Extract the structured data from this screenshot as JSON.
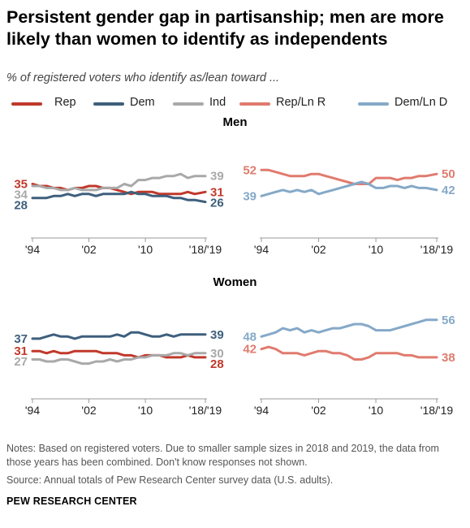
{
  "title": "Persistent gender gap in partisanship; men are more likely than women to identify as independents",
  "subtitle": "% of registered voters who identify as/lean toward ...",
  "legend": [
    {
      "label": "Rep",
      "color": "#c0392b"
    },
    {
      "label": "Dem",
      "color": "#3e5f7d"
    },
    {
      "label": "Ind",
      "color": "#a9a9a9"
    },
    {
      "label": "Rep/Ln R",
      "color": "#e07b6e"
    },
    {
      "label": "Dem/Ln D",
      "color": "#85a9c8"
    }
  ],
  "panels": {
    "men_label": "Men",
    "women_label": "Women"
  },
  "notes": "Notes: Based on registered voters. Due to smaller sample sizes in 2018 and 2019, the data from those years has been combined. Don't know responses not shown.",
  "source": "Source: Annual totals of Pew Research Center survey data (U.S. adults).",
  "org": "PEW RESEARCH CENTER",
  "chart_data": [
    {
      "type": "line",
      "panel": "Men",
      "x": [
        1994,
        1995,
        1996,
        1997,
        1998,
        1999,
        2000,
        2001,
        2002,
        2003,
        2004,
        2005,
        2006,
        2007,
        2008,
        2009,
        2010,
        2011,
        2012,
        2013,
        2014,
        2015,
        2016,
        2017,
        2018.5
      ],
      "xticks": [
        "'94",
        "'02",
        "'10",
        "'18/'19"
      ],
      "ylim": [
        10,
        60
      ],
      "series": [
        {
          "name": "Rep",
          "color": "#c0392b",
          "values": [
            35,
            34,
            34,
            33,
            33,
            32,
            33,
            33,
            34,
            34,
            33,
            33,
            32,
            31,
            30,
            31,
            31,
            31,
            30,
            30,
            30,
            30,
            31,
            30,
            31
          ],
          "start_label": "35",
          "end_label": "31"
        },
        {
          "name": "Dem",
          "color": "#3e5f7d",
          "values": [
            28,
            28,
            28,
            29,
            29,
            30,
            29,
            30,
            30,
            29,
            30,
            30,
            30,
            30,
            31,
            30,
            30,
            29,
            29,
            29,
            28,
            28,
            27,
            27,
            26
          ],
          "start_label": "28",
          "end_label": "26"
        },
        {
          "name": "Ind",
          "color": "#a9a9a9",
          "values": [
            34,
            34,
            33,
            33,
            32,
            32,
            33,
            32,
            32,
            32,
            33,
            33,
            33,
            35,
            34,
            37,
            37,
            38,
            38,
            39,
            39,
            40,
            38,
            39,
            39
          ],
          "start_label": "34",
          "end_label": "39"
        }
      ]
    },
    {
      "type": "line",
      "panel": "Men",
      "x": [
        1994,
        1995,
        1996,
        1997,
        1998,
        1999,
        2000,
        2001,
        2002,
        2003,
        2004,
        2005,
        2006,
        2007,
        2008,
        2009,
        2010,
        2011,
        2012,
        2013,
        2014,
        2015,
        2016,
        2017,
        2018.5
      ],
      "xticks": [
        "'94",
        "'02",
        "'10",
        "'18/'19"
      ],
      "ylim": [
        20,
        70
      ],
      "series": [
        {
          "name": "Rep/Ln R",
          "color": "#e07b6e",
          "values": [
            52,
            52,
            51,
            50,
            49,
            49,
            49,
            50,
            50,
            49,
            48,
            47,
            46,
            45,
            45,
            45,
            48,
            48,
            48,
            47,
            48,
            48,
            49,
            49,
            50
          ],
          "start_label": "52",
          "end_label": "50"
        },
        {
          "name": "Dem/Ln D",
          "color": "#85a9c8",
          "values": [
            39,
            40,
            41,
            42,
            41,
            42,
            41,
            42,
            40,
            41,
            42,
            43,
            44,
            45,
            46,
            45,
            43,
            43,
            44,
            44,
            43,
            44,
            43,
            43,
            42
          ],
          "start_label": "39",
          "end_label": "42"
        }
      ]
    },
    {
      "type": "line",
      "panel": "Women",
      "x": [
        1994,
        1995,
        1996,
        1997,
        1998,
        1999,
        2000,
        2001,
        2002,
        2003,
        2004,
        2005,
        2006,
        2007,
        2008,
        2009,
        2010,
        2011,
        2012,
        2013,
        2014,
        2015,
        2016,
        2017,
        2018.5
      ],
      "xticks": [
        "'94",
        "'02",
        "'10",
        "'18/'19"
      ],
      "ylim": [
        10,
        60
      ],
      "series": [
        {
          "name": "Rep",
          "color": "#c0392b",
          "values": [
            31,
            31,
            30,
            31,
            30,
            30,
            31,
            31,
            31,
            31,
            30,
            30,
            30,
            29,
            29,
            28,
            29,
            29,
            29,
            28,
            28,
            28,
            29,
            28,
            28
          ],
          "start_label": "31",
          "end_label": "28"
        },
        {
          "name": "Dem",
          "color": "#3e5f7d",
          "values": [
            37,
            37,
            38,
            39,
            38,
            38,
            37,
            38,
            38,
            38,
            38,
            38,
            39,
            38,
            40,
            40,
            39,
            38,
            38,
            39,
            38,
            39,
            39,
            39,
            39
          ],
          "start_label": "37",
          "end_label": "39"
        },
        {
          "name": "Ind",
          "color": "#a9a9a9",
          "values": [
            27,
            27,
            26,
            26,
            27,
            27,
            26,
            25,
            25,
            26,
            26,
            27,
            26,
            27,
            27,
            28,
            28,
            29,
            29,
            29,
            30,
            30,
            29,
            30,
            30
          ],
          "start_label": "27",
          "end_label": "30"
        }
      ]
    },
    {
      "type": "line",
      "panel": "Women",
      "x": [
        1994,
        1995,
        1996,
        1997,
        1998,
        1999,
        2000,
        2001,
        2002,
        2003,
        2004,
        2005,
        2006,
        2007,
        2008,
        2009,
        2010,
        2011,
        2012,
        2013,
        2014,
        2015,
        2016,
        2017,
        2018.5
      ],
      "xticks": [
        "'94",
        "'02",
        "'10",
        "'18/'19"
      ],
      "ylim": [
        20,
        70
      ],
      "series": [
        {
          "name": "Rep/Ln R",
          "color": "#e07b6e",
          "values": [
            42,
            43,
            42,
            40,
            40,
            40,
            39,
            40,
            41,
            41,
            40,
            40,
            39,
            37,
            37,
            38,
            40,
            40,
            40,
            40,
            39,
            39,
            38,
            38,
            38
          ],
          "start_label": "42",
          "end_label": "38"
        },
        {
          "name": "Dem/Ln D",
          "color": "#85a9c8",
          "values": [
            48,
            49,
            50,
            52,
            51,
            52,
            50,
            51,
            50,
            51,
            52,
            52,
            53,
            54,
            54,
            53,
            51,
            51,
            51,
            52,
            53,
            54,
            55,
            56,
            56
          ],
          "start_label": "48",
          "end_label": "56"
        }
      ]
    }
  ]
}
